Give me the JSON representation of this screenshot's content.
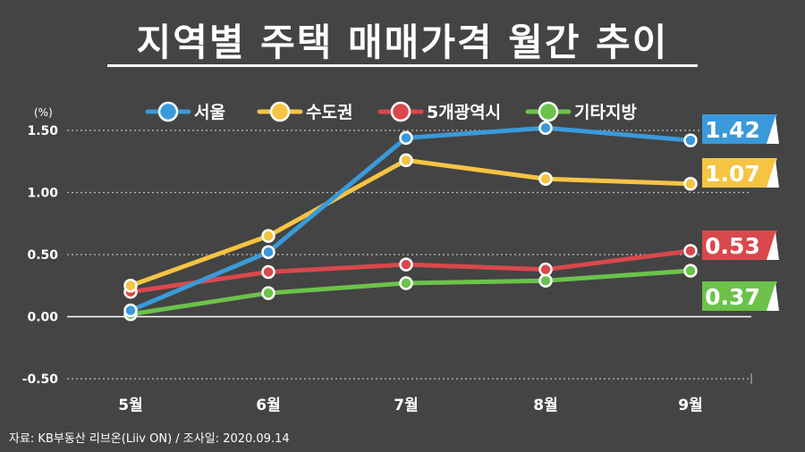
{
  "title": "지역별 주택 매매가격 월간 추이",
  "source": "자료: KB부동산 리브온(Liiv ON)  / 조사일: 2020.09.14",
  "chart_data": {
    "type": "line",
    "ylabel": "(%)",
    "categories": [
      "5월",
      "6월",
      "7월",
      "8월",
      "9월"
    ],
    "ylim": [
      -0.5,
      1.5
    ],
    "yticks": [
      "1.50",
      "1.00",
      "0.50",
      "0.00",
      "-0.50"
    ],
    "grid": true,
    "legend_position": "top",
    "series": [
      {
        "name": "서울",
        "values": [
          0.05,
          0.52,
          1.44,
          1.52,
          1.42
        ],
        "color": "#3a9ad9",
        "end_label": "1.42"
      },
      {
        "name": "수도권",
        "values": [
          0.25,
          0.65,
          1.26,
          1.11,
          1.07
        ],
        "color": "#f5c443",
        "end_label": "1.07"
      },
      {
        "name": "5개광역시",
        "values": [
          0.2,
          0.36,
          0.42,
          0.38,
          0.53
        ],
        "color": "#d9484c",
        "end_label": "0.53"
      },
      {
        "name": "기타지방",
        "values": [
          0.02,
          0.19,
          0.27,
          0.29,
          0.37
        ],
        "color": "#6cc24a",
        "end_label": "0.37"
      }
    ]
  }
}
